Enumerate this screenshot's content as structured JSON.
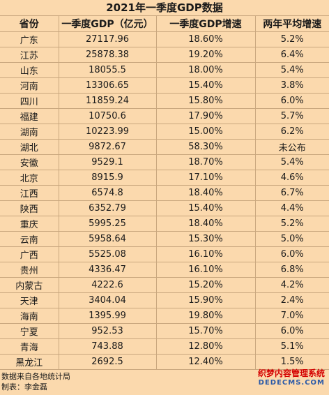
{
  "title": "2021年一季度GDP数据",
  "headers": [
    "省份",
    "一季度GDP（亿元）",
    "一季度GDP增速",
    "两年平均增速"
  ],
  "rows": [
    [
      "广东",
      "27117.96",
      "18.60%",
      "5.2%"
    ],
    [
      "江苏",
      "25878.38",
      "19.20%",
      "6.4%"
    ],
    [
      "山东",
      "18055.5",
      "18.00%",
      "5.4%"
    ],
    [
      "河南",
      "13306.65",
      "15.40%",
      "3.8%"
    ],
    [
      "四川",
      "11859.24",
      "15.80%",
      "6.0%"
    ],
    [
      "福建",
      "10750.6",
      "17.90%",
      "5.7%"
    ],
    [
      "湖南",
      "10223.99",
      "15.00%",
      "6.2%"
    ],
    [
      "湖北",
      "9872.67",
      "58.30%",
      "未公布"
    ],
    [
      "安徽",
      "9529.1",
      "18.70%",
      "5.4%"
    ],
    [
      "北京",
      "8915.9",
      "17.10%",
      "4.6%"
    ],
    [
      "江西",
      "6574.8",
      "18.40%",
      "6.7%"
    ],
    [
      "陕西",
      "6352.79",
      "15.40%",
      "4.4%"
    ],
    [
      "重庆",
      "5995.25",
      "18.40%",
      "5.2%"
    ],
    [
      "云南",
      "5958.64",
      "15.30%",
      "5.0%"
    ],
    [
      "广西",
      "5525.08",
      "16.10%",
      "6.0%"
    ],
    [
      "贵州",
      "4336.47",
      "16.10%",
      "6.8%"
    ],
    [
      "内蒙古",
      "4222.6",
      "15.20%",
      "4.2%"
    ],
    [
      "天津",
      "3404.04",
      "15.90%",
      "2.4%"
    ],
    [
      "海南",
      "1395.99",
      "19.80%",
      "7.0%"
    ],
    [
      "宁夏",
      "952.53",
      "15.70%",
      "6.0%"
    ],
    [
      "青海",
      "743.88",
      "12.80%",
      "5.1%"
    ],
    [
      "黑龙江",
      "2692.5",
      "12.40%",
      "1.5%"
    ]
  ],
  "footer": {
    "source": "数据来自各地统计局",
    "author": "制表：李金磊"
  },
  "watermark": {
    "cn": "织梦内容管理系统",
    "en": "DEDECMS.COM"
  }
}
